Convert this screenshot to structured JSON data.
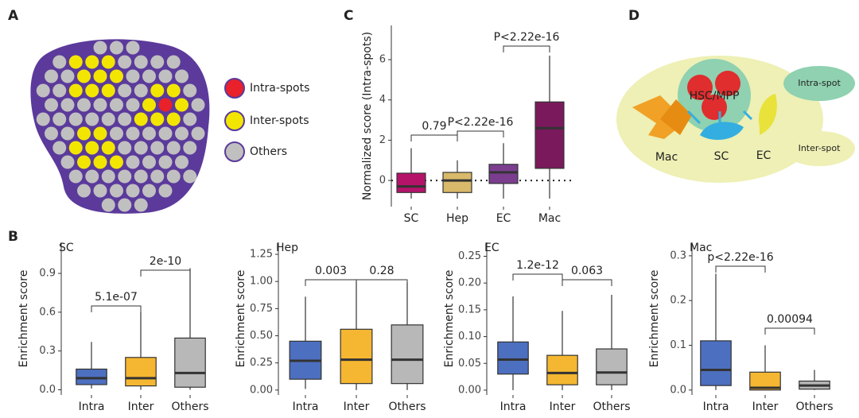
{
  "panel_labels": [
    "A",
    "B",
    "C",
    "D"
  ],
  "panel_a": {
    "legend": [
      "Intra-spots",
      "Inter-spots",
      "Others"
    ]
  },
  "panel_d": {
    "center": "HSC/MPP",
    "cells": [
      "Mac",
      "SC",
      "EC"
    ],
    "legend": [
      "Intra-spot",
      "Inter-spot"
    ]
  },
  "chart_data": [
    {
      "type": "box",
      "y_label": "Normalized score (Intra-spots)",
      "categories": [
        "SC",
        "Hep",
        "EC",
        "Mac"
      ],
      "colors": [
        "#b5136a",
        "#d9b96a",
        "#7b3e8f",
        "#7a1a5c"
      ],
      "stats": {
        "low": [
          -0.9,
          -0.9,
          -0.9,
          -0.9
        ],
        "q1": [
          -0.6,
          -0.6,
          -0.15,
          0.6
        ],
        "median": [
          -0.3,
          0,
          0.4,
          2.6
        ],
        "q3": [
          0.36,
          0.4,
          0.8,
          3.9
        ],
        "high": [
          1.6,
          1.0,
          1.85,
          6.2
        ]
      },
      "hline": 0,
      "comparison_labels": [
        "0.79",
        "P<2.22e-16",
        "P<2.22e-16"
      ],
      "ylim": [
        -1.3,
        7.7
      ],
      "yticks": [
        0,
        2,
        4,
        6
      ]
    },
    {
      "type": "box",
      "title": "SC",
      "y_label": "Enrichment score",
      "categories": [
        "Intra",
        "Inter",
        "Others"
      ],
      "colors": [
        "#4d6fbf",
        "#f5b731",
        "#b8b8b8"
      ],
      "stats": {
        "low": [
          0.01,
          0.0,
          0.0
        ],
        "q1": [
          0.04,
          0.03,
          0.02
        ],
        "median": [
          0.09,
          0.09,
          0.13
        ],
        "q3": [
          0.16,
          0.25,
          0.4
        ],
        "high": [
          0.37,
          0.6,
          0.94
        ]
      },
      "comparison_labels": [
        "5.1e-07",
        "2e-10"
      ],
      "ylim": [
        -0.04,
        1.14
      ],
      "yticks": [
        {
          "value": 0,
          "label": "0.0"
        },
        0.3,
        0.6,
        0.9
      ]
    },
    {
      "type": "box",
      "title": "Hep",
      "y_label": "Enrichment score",
      "categories": [
        "Intra",
        "Inter",
        "Others"
      ],
      "colors": [
        "#4d6fbf",
        "#f5b731",
        "#b8b8b8"
      ],
      "stats": {
        "low": [
          0.01,
          0.0,
          0.0
        ],
        "q1": [
          0.1,
          0.06,
          0.06
        ],
        "median": [
          0.27,
          0.28,
          0.28
        ],
        "q3": [
          0.45,
          0.56,
          0.6
        ],
        "high": [
          0.86,
          1.0,
          0.99
        ]
      },
      "comparison_labels": [
        "0.003",
        "0.28"
      ],
      "ylim": [
        -0.045,
        1.36
      ],
      "yticks": [
        {
          "value": 0,
          "label": "0.00"
        },
        0.25,
        {
          "value": 0.5,
          "label": "0.50"
        },
        0.75,
        {
          "value": 1,
          "label": "1.00"
        },
        1.25
      ]
    },
    {
      "type": "box",
      "title": "EC",
      "y_label": "Enrichment score",
      "categories": [
        "Intra",
        "Inter",
        "Others"
      ],
      "colors": [
        "#4d6fbf",
        "#f5b731",
        "#b8b8b8"
      ],
      "stats": {
        "low": [
          0.0,
          0.0,
          0.0
        ],
        "q1": [
          0.03,
          0.01,
          0.01
        ],
        "median": [
          0.057,
          0.032,
          0.033
        ],
        "q3": [
          0.09,
          0.065,
          0.077
        ],
        "high": [
          0.175,
          0.148,
          0.178
        ]
      },
      "comparison_labels": [
        "1.2e-12",
        "0.063"
      ],
      "ylim": [
        -0.009,
        0.276
      ],
      "yticks": [
        {
          "value": 0,
          "label": "0.00"
        },
        0.05,
        {
          "value": 0.1,
          "label": "0.10"
        },
        0.15,
        {
          "value": 0.2,
          "label": "0.20"
        },
        0.25
      ]
    },
    {
      "type": "box",
      "title": "Mac",
      "y_label": "Enrichment score",
      "categories": [
        "Intra",
        "Inter",
        "Others"
      ],
      "colors": [
        "#4d6fbf",
        "#f5b731",
        "#b8b8b8"
      ],
      "stats": {
        "low": [
          0.0,
          0.0,
          0.0
        ],
        "q1": [
          0.01,
          0.0,
          0.002
        ],
        "median": [
          0.045,
          0.005,
          0.01
        ],
        "q3": [
          0.11,
          0.04,
          0.02
        ],
        "high": [
          0.26,
          0.1,
          0.045
        ]
      },
      "comparison_labels": [
        "p<2.22e-16",
        "0.00094"
      ],
      "ylim": [
        -0.011,
        0.33
      ],
      "yticks": [
        {
          "value": 0,
          "label": "0.0"
        },
        0.1,
        0.2,
        0.3
      ]
    }
  ]
}
